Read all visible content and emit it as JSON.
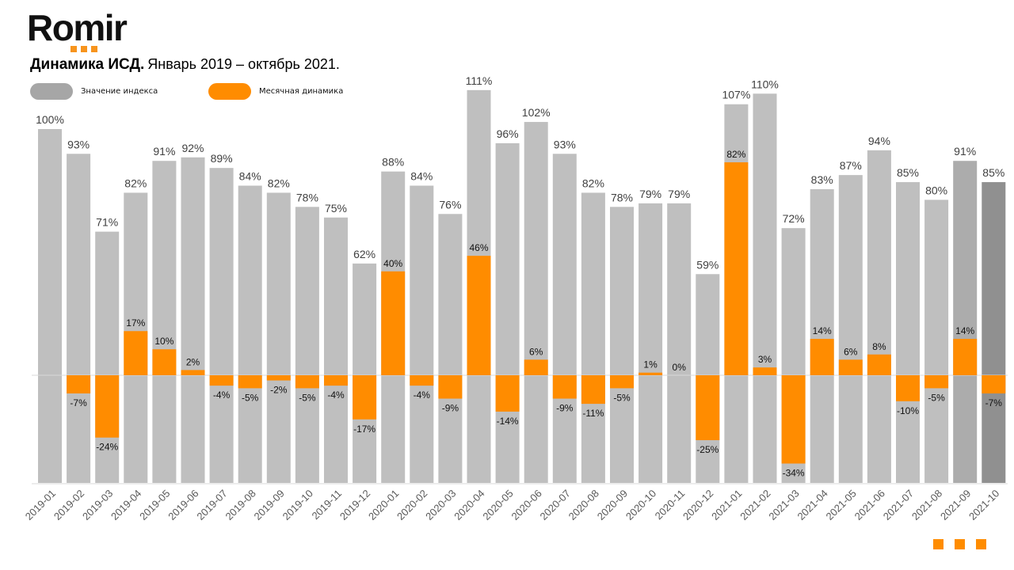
{
  "brand": {
    "logo_text": "Romir",
    "accent_color": "#ff8c00"
  },
  "header": {
    "title_bold": "Динамика ИСД.",
    "title_rest": "Январь 2019 – октябрь 2021."
  },
  "chart_data": {
    "type": "bar",
    "title": "Динамика ИСД. Январь 2019 – октябрь 2021.",
    "xlabel": "",
    "ylabel": "",
    "grid": false,
    "legend_placement": "top-left",
    "categories": [
      "2019-01",
      "2019-02",
      "2019-03",
      "2019-04",
      "2019-05",
      "2019-06",
      "2019-07",
      "2019-08",
      "2019-09",
      "2019-10",
      "2019-11",
      "2019-12",
      "2020-01",
      "2020-02",
      "2020-03",
      "2020-04",
      "2020-05",
      "2020-06",
      "2020-07",
      "2020-08",
      "2020-09",
      "2020-10",
      "2020-11",
      "2020-12",
      "2021-01",
      "2021-02",
      "2021-03",
      "2021-04",
      "2021-05",
      "2021-06",
      "2021-07",
      "2021-08",
      "2021-09",
      "2021-10"
    ],
    "series": [
      {
        "name": "Значение индекса",
        "color": "#bfbfbf",
        "values": [
          100,
          93,
          71,
          82,
          91,
          92,
          89,
          84,
          82,
          78,
          75,
          62,
          88,
          84,
          76,
          111,
          96,
          102,
          93,
          82,
          78,
          79,
          79,
          59,
          107,
          110,
          72,
          83,
          87,
          94,
          85,
          80,
          91,
          85
        ],
        "labels": [
          "100%",
          "93%",
          "71%",
          "82%",
          "91%",
          "92%",
          "89%",
          "84%",
          "82%",
          "78%",
          "75%",
          "62%",
          "88%",
          "84%",
          "76%",
          "111%",
          "96%",
          "102%",
          "93%",
          "82%",
          "78%",
          "79%",
          "79%",
          "59%",
          "107%",
          "110%",
          "72%",
          "83%",
          "87%",
          "94%",
          "85%",
          "80%",
          "91%",
          "85%"
        ],
        "highlight_colors": {
          "2021-09": "#acacac",
          "2021-10": "#909090"
        }
      },
      {
        "name": "Месячная динамика",
        "color": "#ff8c00",
        "values": [
          0,
          -7,
          -24,
          17,
          10,
          2,
          -4,
          -5,
          -2,
          -5,
          -4,
          -17,
          40,
          -4,
          -9,
          46,
          -14,
          6,
          -9,
          -11,
          -5,
          1,
          0,
          -25,
          82,
          3,
          -34,
          14,
          6,
          8,
          -10,
          -5,
          14,
          -7
        ],
        "labels": [
          "",
          "-7%",
          "-24%",
          "17%",
          "10%",
          "2%",
          "-4%",
          "-5%",
          "-2%",
          "-5%",
          "-4%",
          "-17%",
          "40%",
          "-4%",
          "-9%",
          "46%",
          "-14%",
          "6%",
          "-9%",
          "-11%",
          "-5%",
          "1%",
          "0%",
          "-25%",
          "82%",
          "3%",
          "-34%",
          "14%",
          "6%",
          "8%",
          "-10%",
          "-5%",
          "14%",
          "-7%"
        ]
      }
    ]
  },
  "legend": {
    "items": [
      {
        "label": "Значение индекса",
        "color": "#a6a6a6"
      },
      {
        "label": "Месячная динамика",
        "color": "#ff8c00"
      }
    ]
  }
}
